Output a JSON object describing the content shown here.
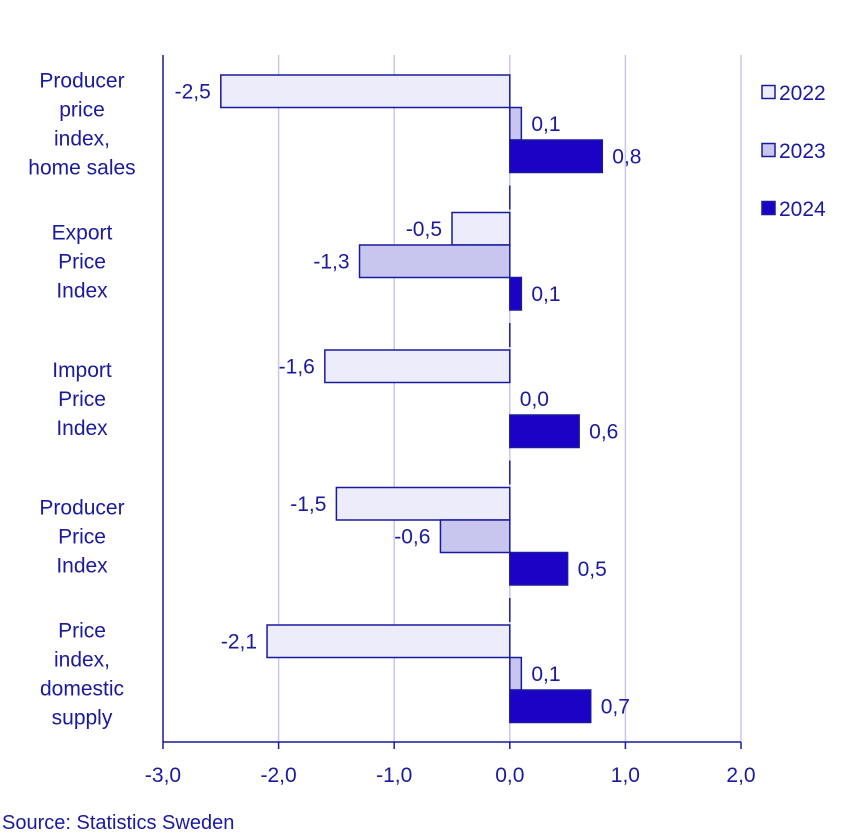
{
  "chart_data": {
    "type": "bar",
    "orientation": "horizontal",
    "categories": [
      [
        "Producer",
        "price",
        "index,",
        "home sales"
      ],
      [
        "Export",
        "Price",
        "Index"
      ],
      [
        "Import",
        "Price",
        "Index"
      ],
      [
        "Producer",
        "Price",
        "Index"
      ],
      [
        "Price",
        "index,",
        "domestic",
        "supply"
      ]
    ],
    "series": [
      {
        "name": "2022",
        "color": "#ececfb",
        "values": [
          -2.5,
          -0.5,
          -1.6,
          -1.5,
          -2.1
        ],
        "labels": [
          "-2,5",
          "-0,5",
          "-1,6",
          "-1,5",
          "-2,1"
        ]
      },
      {
        "name": "2023",
        "color": "#c8c6ef",
        "values": [
          0.1,
          -1.3,
          0.0,
          -0.6,
          0.1
        ],
        "labels": [
          "0,1",
          "-1,3",
          "0,0",
          "-0,6",
          "0,1"
        ]
      },
      {
        "name": "2024",
        "color": "#1c02c4",
        "values": [
          0.8,
          0.1,
          0.6,
          0.5,
          0.7
        ],
        "labels": [
          "0,8",
          "0,1",
          "0,6",
          "0,5",
          "0,7"
        ]
      }
    ],
    "xlim": [
      -3.0,
      2.0
    ],
    "xticks": [
      -3.0,
      -2.0,
      -1.0,
      0.0,
      1.0,
      2.0
    ],
    "xtick_labels": [
      "-3,0",
      "-2,0",
      "-1,0",
      "0,0",
      "1,0",
      "2,0"
    ],
    "grid": "vertical",
    "legend_position": "top-right",
    "title": "",
    "xlabel": "",
    "ylabel": ""
  },
  "footer": {
    "source": "Source: Statistics Sweden"
  },
  "colors": {
    "text": "#1a1a9e",
    "axis": "#1a1a9e",
    "grid": "#c9c6ee",
    "bar_stroke": "#1a1a9e"
  }
}
